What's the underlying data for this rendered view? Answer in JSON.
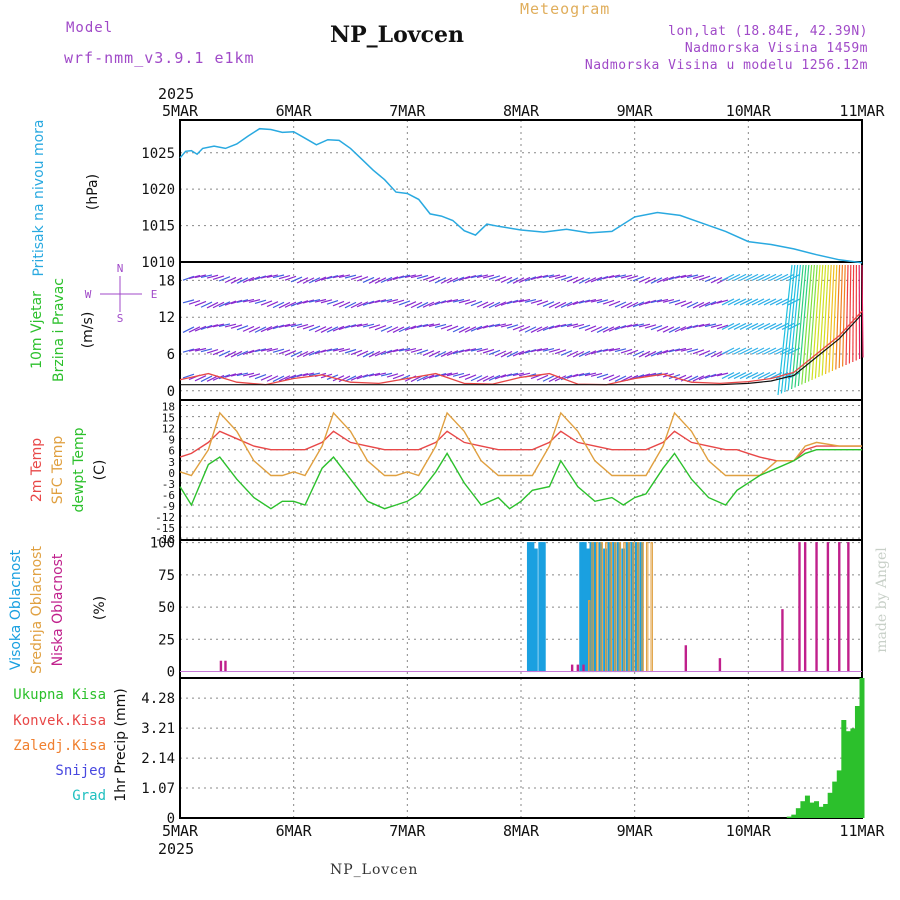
{
  "header": {
    "model_label": "Model",
    "model_name": "wrf-nmm_v3.9.1 e1km",
    "station": "NP_Lovcen",
    "meteogram": "Meteogram",
    "lonlat": "lon,lat (18.84E, 42.39N)",
    "altitude": "Nadmorska Visina 1459m",
    "model_altitude": "Nadmorska Visina u modelu 1256.12m"
  },
  "footer": {
    "station": "NP_Lovcen",
    "credit": "made by Angel"
  },
  "colors": {
    "pressure": "#29a9e0",
    "temp2m": "#e84848",
    "sfc": "#e0a040",
    "dewpt": "#2cc02c",
    "purple": "#a04ac8",
    "magenta": "#c0208c",
    "high_cloud": "#1aa0e0",
    "mid_cloud": "#e0a040",
    "total_precip": "#2cc02c",
    "conv": "#e84848",
    "frz": "#f08030",
    "snow": "#4848e0",
    "hail": "#20c0c0"
  },
  "axis": {
    "year": "2025",
    "dates": [
      "5MAR",
      "6MAR",
      "7MAR",
      "8MAR",
      "9MAR",
      "10MAR",
      "11MAR"
    ]
  },
  "chart_data": [
    {
      "type": "line",
      "panel": "pressure",
      "ylabel_rot": "Pritisak na nivou mora",
      "unit": "(hPa)",
      "ylim": [
        1010,
        1029.5
      ],
      "yticks": [
        1010,
        1015,
        1020,
        1025
      ],
      "x_days": [
        0,
        0.05,
        0.1,
        0.15,
        0.2,
        0.3,
        0.4,
        0.5,
        0.6,
        0.7,
        0.8,
        0.9,
        1.0,
        1.1,
        1.2,
        1.3,
        1.4,
        1.5,
        1.6,
        1.7,
        1.8,
        1.9,
        2.0,
        2.1,
        2.2,
        2.3,
        2.4,
        2.5,
        2.6,
        2.7,
        2.8,
        3.0,
        3.2,
        3.4,
        3.6,
        3.8,
        4.0,
        4.2,
        4.4,
        4.6,
        4.8,
        5.0,
        5.2,
        5.4,
        5.6,
        5.8,
        6.0
      ],
      "series": [
        {
          "values": [
            1024.3,
            1025.2,
            1025.3,
            1024.8,
            1025.6,
            1025.9,
            1025.6,
            1026.2,
            1027.3,
            1028.3,
            1028.2,
            1027.8,
            1027.9,
            1027.0,
            1026.1,
            1026.8,
            1026.7,
            1025.6,
            1024.1,
            1022.6,
            1021.3,
            1019.6,
            1019.4,
            1018.6,
            1016.6,
            1016.3,
            1015.7,
            1014.3,
            1013.7,
            1015.2,
            1014.9,
            1014.4,
            1014.1,
            1014.5,
            1014.0,
            1014.2,
            1016.2,
            1016.8,
            1016.4,
            1015.3,
            1014.2,
            1012.8,
            1012.4,
            1011.8,
            1011.0,
            1010.3,
            1009.9
          ]
        }
      ]
    },
    {
      "type": "line",
      "panel": "wind",
      "ylabel_rot": [
        "10m Vjetar",
        "Brzina i Pravac"
      ],
      "unit": "(m/s)",
      "compass": {
        "n": "N",
        "e": "E",
        "w": "W",
        "s": "S"
      },
      "ylim": [
        -1.5,
        21
      ],
      "yticks": [
        0,
        6,
        12,
        18
      ],
      "x_days": [
        0,
        0.25,
        0.5,
        0.75,
        1.0,
        1.25,
        1.5,
        1.75,
        2.0,
        2.25,
        2.5,
        2.75,
        3.0,
        3.25,
        3.5,
        3.75,
        4.0,
        4.25,
        4.5,
        4.75,
        5.0,
        5.2,
        5.4,
        5.6,
        5.8,
        6.0
      ],
      "series": [
        {
          "name": "speed",
          "values": [
            1.8,
            2.8,
            1.4,
            1.0,
            2.0,
            2.6,
            1.4,
            1.2,
            2.0,
            2.8,
            1.2,
            1.1,
            2.2,
            2.8,
            1.1,
            1.0,
            2.0,
            2.7,
            1.4,
            1.2,
            1.5,
            2.0,
            3.0,
            6.0,
            9.0,
            13.0
          ]
        },
        {
          "name": "gust",
          "values": [
            1.0,
            1.0,
            1.0,
            1.0,
            1.0,
            1.0,
            1.0,
            1.0,
            1.0,
            1.0,
            1.0,
            1.0,
            1.0,
            1.0,
            1.0,
            1.0,
            1.0,
            1.0,
            1.0,
            1.0,
            1.2,
            1.6,
            2.5,
            5.5,
            8.5,
            12.5
          ]
        }
      ]
    },
    {
      "type": "line",
      "panel": "temperature",
      "ylabel_rot": [
        "2m Temp",
        "SFC Temp",
        "dewpt Temp"
      ],
      "unit": "(C)",
      "ylim": [
        -18.5,
        19.5
      ],
      "yticks": [
        -18,
        -15,
        -12,
        -9,
        -6,
        -3,
        0,
        3,
        6,
        9,
        12,
        15,
        18
      ],
      "x_days": [
        0,
        0.1,
        0.25,
        0.35,
        0.5,
        0.65,
        0.8,
        0.9,
        1.0,
        1.1,
        1.25,
        1.35,
        1.5,
        1.65,
        1.8,
        1.9,
        2.0,
        2.1,
        2.25,
        2.35,
        2.5,
        2.65,
        2.8,
        2.9,
        3.0,
        3.1,
        3.25,
        3.35,
        3.5,
        3.65,
        3.8,
        3.9,
        4.0,
        4.1,
        4.25,
        4.35,
        4.5,
        4.65,
        4.8,
        4.9,
        5.0,
        5.1,
        5.25,
        5.4,
        5.5,
        5.6,
        5.8,
        6.0
      ],
      "series": [
        {
          "name": "2m Temp",
          "values": [
            4,
            5,
            8,
            11,
            9,
            7,
            6,
            6,
            6,
            6,
            8,
            11,
            8,
            7,
            6,
            6,
            6,
            6,
            8,
            11,
            8,
            7,
            6,
            6,
            6,
            6,
            8,
            11,
            8,
            7,
            6,
            6,
            6,
            6,
            8,
            11,
            8,
            7,
            6,
            6,
            5,
            4,
            3,
            3,
            6,
            7,
            7,
            7
          ]
        },
        {
          "name": "SFC Temp",
          "values": [
            0,
            -1,
            6,
            16,
            11,
            3,
            -1,
            -1,
            0,
            -1,
            7,
            16,
            11,
            3,
            -1,
            -1,
            0,
            -1,
            7,
            16,
            11,
            3,
            -1,
            -1,
            -1,
            -1,
            7,
            16,
            11,
            3,
            -1,
            -1,
            -1,
            -1,
            7,
            16,
            11,
            3,
            -1,
            -1,
            -1,
            -1,
            3,
            3,
            7,
            8,
            7,
            7
          ]
        },
        {
          "name": "dewpt Temp",
          "values": [
            -4,
            -9,
            2,
            4,
            -2,
            -7,
            -10,
            -8,
            -8,
            -9,
            1,
            4,
            -2,
            -8,
            -10,
            -9,
            -8,
            -6,
            0,
            5,
            -3,
            -9,
            -7,
            -10,
            -8,
            -5,
            -4,
            3,
            -4,
            -8,
            -7,
            -9,
            -7,
            -6,
            1,
            5,
            -2,
            -7,
            -9,
            -5,
            -3,
            -1,
            1,
            3,
            5,
            6,
            6,
            6
          ]
        }
      ]
    },
    {
      "type": "bar",
      "panel": "cloud",
      "ylabel_rot": [
        "Visoka Oblacnost",
        "Srednja Oblacnost",
        "Niska Oblacnost"
      ],
      "unit": "(%)",
      "ylim": [
        -5,
        102
      ],
      "yticks": [
        0,
        25,
        50,
        75,
        100
      ],
      "series": [
        {
          "name": "Visoka Oblacnost",
          "x_days": [
            3.07,
            3.1,
            3.13,
            3.17,
            3.2,
            3.53,
            3.56,
            3.59,
            3.62,
            3.65,
            3.7,
            3.74,
            3.78,
            3.82,
            3.86,
            3.9,
            3.94,
            3.98,
            4.02,
            4.06
          ],
          "values": [
            100,
            100,
            95,
            100,
            100,
            100,
            100,
            95,
            100,
            100,
            100,
            95,
            100,
            100,
            100,
            95,
            100,
            100,
            100,
            100
          ]
        },
        {
          "name": "Srednja Oblacnost",
          "x_days": [
            3.6,
            3.63,
            3.67,
            3.71,
            3.75,
            3.79,
            3.83,
            3.87,
            3.91,
            3.95,
            3.99,
            4.03,
            4.07,
            4.11,
            4.15
          ],
          "values": [
            55,
            100,
            100,
            100,
            100,
            100,
            100,
            100,
            100,
            100,
            100,
            100,
            100,
            100,
            100
          ]
        },
        {
          "name": "Niska Oblacnost",
          "x_days": [
            0.36,
            0.4,
            3.45,
            3.5,
            3.55,
            4.45,
            4.75,
            5.3,
            5.45,
            5.5,
            5.6,
            5.7,
            5.8,
            5.88
          ],
          "values": [
            8,
            8,
            5,
            5,
            5,
            20,
            10,
            48,
            100,
            100,
            100,
            100,
            100,
            100
          ]
        }
      ]
    },
    {
      "type": "bar",
      "panel": "precip",
      "ylabel_rot": "1hr Precip (mm)",
      "legend": [
        "Ukupna Kisa",
        "Konvek.Kisa",
        "Zaledj.Kisa",
        "Snijeg",
        "Grad"
      ],
      "ylim": [
        0,
        5.0
      ],
      "yticks": [
        0,
        1.07,
        2.14,
        3.21,
        4.28
      ],
      "x_days": [
        5.36,
        5.4,
        5.44,
        5.48,
        5.52,
        5.56,
        5.6,
        5.64,
        5.68,
        5.72,
        5.76,
        5.8,
        5.84,
        5.88,
        5.92,
        5.96,
        6.0
      ],
      "series": [
        {
          "name": "Ukupna Kisa",
          "values": [
            0.05,
            0.12,
            0.35,
            0.6,
            0.8,
            0.55,
            0.6,
            0.4,
            0.5,
            0.9,
            1.3,
            1.7,
            3.5,
            3.1,
            3.2,
            4.0,
            5.0
          ]
        }
      ]
    }
  ]
}
